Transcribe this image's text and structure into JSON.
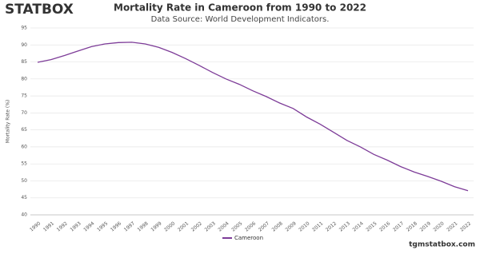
{
  "logo": "STATBOX",
  "watermark": "tgmstatbox.com",
  "chart_data": {
    "type": "line",
    "title": "Mortality Rate in Cameroon from 1990 to 2022",
    "subtitle": "Data Source: World Development Indicators.",
    "y_label": "Mortality Rate (%)",
    "categories": [
      "1990",
      "1991",
      "1992",
      "1993",
      "1994",
      "1995",
      "1996",
      "1997",
      "1998",
      "1999",
      "2000",
      "2001",
      "2002",
      "2003",
      "2004",
      "2005",
      "2006",
      "2007",
      "2008",
      "2009",
      "2010",
      "2011",
      "2012",
      "2013",
      "2014",
      "2015",
      "2016",
      "2017",
      "2018",
      "2019",
      "2020",
      "2021",
      "2022"
    ],
    "series": [
      {
        "name": "Cameroon",
        "color": "#7d3c98",
        "values": [
          84.9,
          85.7,
          86.9,
          88.2,
          89.5,
          90.3,
          90.7,
          90.8,
          90.3,
          89.3,
          87.8,
          86.0,
          84.0,
          81.9,
          80.0,
          78.4,
          76.5,
          74.8,
          72.9,
          71.3,
          68.8,
          66.7,
          64.3,
          61.9,
          60.0,
          57.8,
          56.1,
          54.2,
          52.6,
          51.3,
          49.9,
          48.3,
          47.1
        ]
      }
    ],
    "ylim": [
      40,
      95
    ],
    "yticks": [
      40,
      45,
      50,
      55,
      60,
      65,
      70,
      75,
      80,
      85,
      90,
      95
    ],
    "grid": true
  }
}
